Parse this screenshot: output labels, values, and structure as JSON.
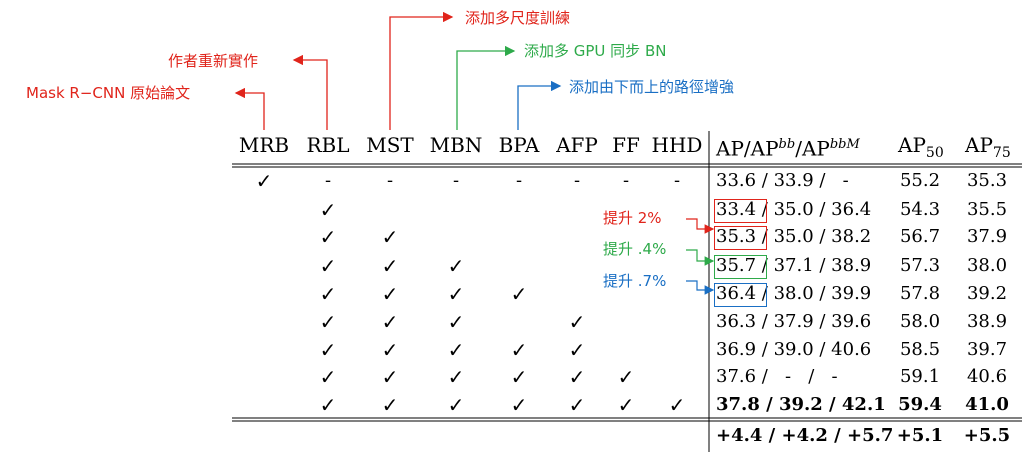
{
  "annotations": {
    "mrb": "Mask R−CNN 原始論文",
    "rbl": "作者重新實作",
    "mst": "添加多尺度訓練",
    "mbn": "添加多 GPU 同步 BN",
    "bpa": "添加由下而上的路徑增強"
  },
  "headers": {
    "cols": [
      "MRB",
      "RBL",
      "MST",
      "MBN",
      "BPA",
      "AFP",
      "FF",
      "HHD"
    ],
    "ap": "AP/AP",
    "ap_sup1": "bb",
    "ap_slash": "/AP",
    "ap_sup2": "bbM",
    "ap50": "AP",
    "ap50_sub": "50",
    "ap75": "AP",
    "ap75_sub": "75"
  },
  "check_symbol": "✓",
  "dash_symbol": "-",
  "rows": [
    {
      "checks": [
        1,
        0,
        0,
        0,
        0,
        0,
        0,
        0
      ],
      "dashes": [
        0,
        1,
        1,
        1,
        1,
        1,
        1,
        1
      ],
      "ap_a": "33.6",
      "ap_rest": " / 33.9 /   -",
      "ap50": "55.2",
      "ap75": "35.3"
    },
    {
      "checks": [
        0,
        1,
        0,
        0,
        0,
        0,
        0,
        0
      ],
      "ap_a": "33.4",
      "ap_rest": " / 35.0 / 36.4",
      "ap50": "54.3",
      "ap75": "35.5"
    },
    {
      "checks": [
        0,
        1,
        1,
        0,
        0,
        0,
        0,
        0
      ],
      "ap_a": "35.3",
      "ap_rest": " / 35.0 / 38.2",
      "ap50": "56.7",
      "ap75": "37.9"
    },
    {
      "checks": [
        0,
        1,
        1,
        1,
        0,
        0,
        0,
        0
      ],
      "ap_a": "35.7",
      "ap_rest": " / 37.1 / 38.9",
      "ap50": "57.3",
      "ap75": "38.0"
    },
    {
      "checks": [
        0,
        1,
        1,
        1,
        1,
        0,
        0,
        0
      ],
      "ap_a": "36.4",
      "ap_rest": " / 38.0 / 39.9",
      "ap50": "57.8",
      "ap75": "39.2"
    },
    {
      "checks": [
        0,
        1,
        1,
        1,
        0,
        1,
        0,
        0
      ],
      "ap_a": "36.3",
      "ap_rest": " / 37.9 / 39.6",
      "ap50": "58.0",
      "ap75": "38.9"
    },
    {
      "checks": [
        0,
        1,
        1,
        1,
        1,
        1,
        0,
        0
      ],
      "ap_a": "36.9",
      "ap_rest": " / 39.0 / 40.6",
      "ap50": "58.5",
      "ap75": "39.7"
    },
    {
      "checks": [
        0,
        1,
        1,
        1,
        1,
        1,
        1,
        0
      ],
      "ap_a": "37.6",
      "ap_rest": " /   -   /   -",
      "ap50": "59.1",
      "ap75": "40.6"
    },
    {
      "checks": [
        0,
        1,
        1,
        1,
        1,
        1,
        1,
        1
      ],
      "ap_a": "37.8",
      "ap_rest": " / 39.2 / 42.1",
      "ap50": "59.4",
      "ap75": "41.0",
      "bold": true
    }
  ],
  "summary": {
    "ap": "+4.4 / +4.2 / +5.7",
    "ap50": "+5.1",
    "ap75": "+5.5"
  },
  "gains": [
    "提升 2%",
    "提升 .4%",
    "提升 .7%"
  ],
  "colors": {
    "red": "#e0241b",
    "green": "#2eaa4a",
    "blue": "#1a6fc4"
  }
}
